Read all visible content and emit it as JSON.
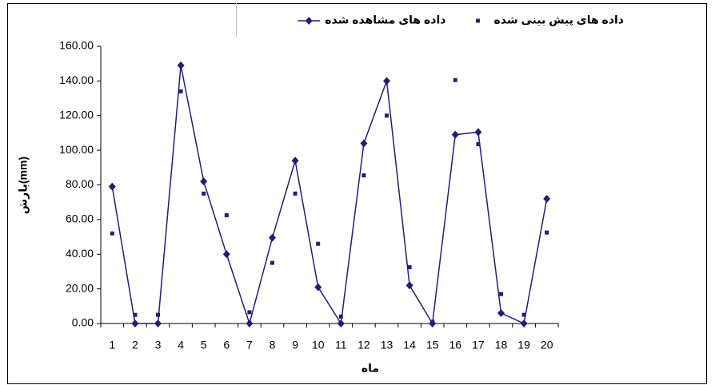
{
  "chart_data": {
    "type": "line",
    "x_label": "ماه",
    "y_label": "بارش(mm)",
    "categories": [
      "1",
      "2",
      "3",
      "4",
      "5",
      "6",
      "7",
      "8",
      "9",
      "10",
      "11",
      "12",
      "13",
      "14",
      "15",
      "16",
      "17",
      "18",
      "19",
      "20"
    ],
    "series": [
      {
        "name": "داده های مشاهده شده",
        "color": "#1f1f7a",
        "marker": "diamond",
        "line": true,
        "values": [
          79,
          0,
          0,
          149,
          82,
          40,
          0,
          49.5,
          94,
          21,
          0,
          104,
          140,
          22,
          0,
          109,
          110.5,
          6,
          0,
          72
        ]
      },
      {
        "name": "داده های پیش بینی شده",
        "color": "#1f1f7a",
        "marker": "square",
        "line": false,
        "values": [
          52,
          5,
          5,
          134,
          75,
          62.5,
          6.5,
          35,
          75,
          46,
          4,
          85.5,
          120,
          32.5,
          1,
          140.5,
          103.5,
          17,
          5,
          52.5
        ]
      }
    ],
    "ylim": [
      0,
      160
    ],
    "yticks": [
      {
        "value": 0,
        "label": "0.00"
      },
      {
        "value": 20,
        "label": "20.00"
      },
      {
        "value": 40,
        "label": "40.00"
      },
      {
        "value": 60,
        "label": "60.00"
      },
      {
        "value": 80,
        "label": "80.00"
      },
      {
        "value": 100,
        "label": "100.00"
      },
      {
        "value": 120,
        "label": "120.00"
      },
      {
        "value": 140,
        "label": "140.00"
      },
      {
        "value": 160,
        "label": "160.00"
      }
    ],
    "grid": false,
    "legend": "top"
  }
}
